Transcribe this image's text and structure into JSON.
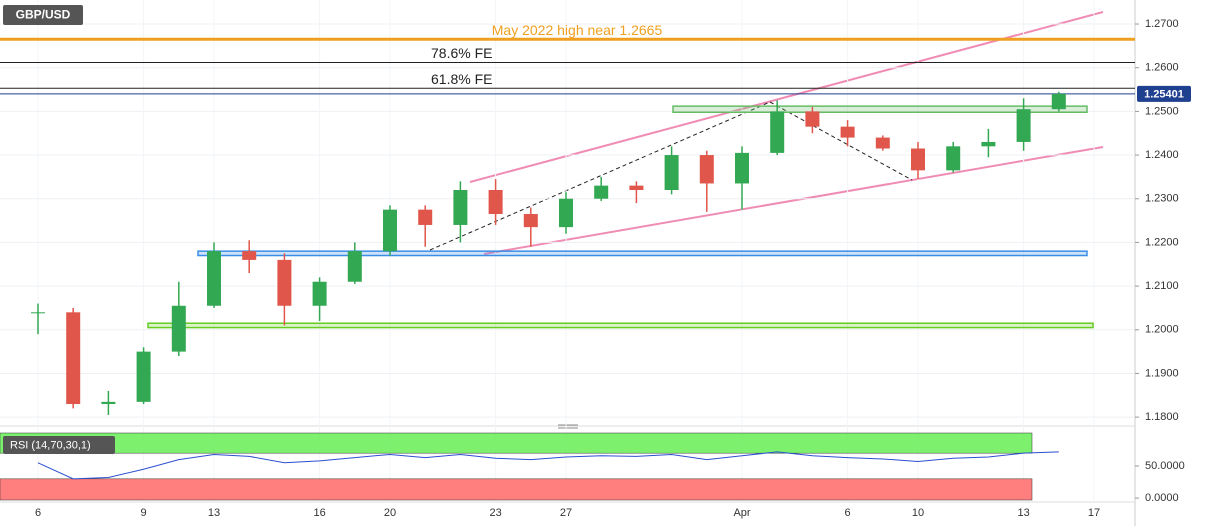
{
  "chart_data": {
    "type": "candlestick",
    "symbol": "GBP/USD",
    "categories": [
      "6",
      null,
      null,
      "9",
      null,
      "13",
      null,
      null,
      "16",
      null,
      "20",
      null,
      null,
      "23",
      null,
      "27",
      null,
      null,
      null,
      null,
      "Apr",
      null,
      null,
      "6",
      null,
      "10",
      null,
      null,
      "13",
      null,
      "17"
    ],
    "open": [
      1.204,
      1.204,
      1.183,
      1.1835,
      1.195,
      1.2055,
      1.218,
      1.216,
      1.2055,
      1.211,
      1.218,
      1.2275,
      1.224,
      1.232,
      1.2265,
      1.2235,
      1.23,
      1.233,
      1.232,
      1.24,
      1.2335,
      1.2405,
      1.25,
      1.2465,
      1.244,
      1.2415,
      1.2365,
      1.242,
      1.243,
      1.2505,
      null
    ],
    "high": [
      1.206,
      1.205,
      1.186,
      1.196,
      1.211,
      1.22,
      1.2205,
      1.2175,
      1.212,
      1.22,
      1.2285,
      1.2285,
      1.234,
      1.2345,
      1.228,
      1.2315,
      1.235,
      1.234,
      1.242,
      1.241,
      1.242,
      1.2525,
      1.251,
      1.248,
      1.2445,
      1.243,
      1.243,
      1.246,
      1.253,
      1.2545,
      null
    ],
    "low": [
      1.199,
      1.182,
      1.1805,
      1.183,
      1.194,
      1.205,
      1.213,
      1.201,
      1.202,
      1.2105,
      1.217,
      1.219,
      1.22,
      1.224,
      1.219,
      1.222,
      1.2295,
      1.229,
      1.231,
      1.227,
      1.2275,
      1.24,
      1.245,
      1.242,
      1.241,
      1.2345,
      1.236,
      1.2395,
      1.241,
      1.25,
      null
    ],
    "close": [
      1.204,
      1.183,
      1.1835,
      1.195,
      1.2055,
      1.218,
      1.216,
      1.2055,
      1.211,
      1.218,
      1.2275,
      1.224,
      1.232,
      1.2265,
      1.2235,
      1.23,
      1.233,
      1.232,
      1.24,
      1.2335,
      1.2405,
      1.25,
      1.2465,
      1.244,
      1.2415,
      1.2365,
      1.242,
      1.243,
      1.2505,
      1.254,
      null
    ],
    "up_color": "#33a852",
    "down_color": "#e0564b",
    "ylim": [
      1.1782,
      1.2755
    ],
    "yticks": [
      {
        "value": 1.18,
        "label": "1.1800"
      },
      {
        "value": 1.19,
        "label": "1.1900"
      },
      {
        "value": 1.2,
        "label": "1.2000"
      },
      {
        "value": 1.21,
        "label": "1.2100"
      },
      {
        "value": 1.22,
        "label": "1.2200"
      },
      {
        "value": 1.23,
        "label": "1.2300"
      },
      {
        "value": 1.24,
        "label": "1.2400"
      },
      {
        "value": 1.25,
        "label": "1.2500"
      },
      {
        "value": 1.26,
        "label": "1.2600"
      },
      {
        "value": 1.27,
        "label": "1.2700"
      }
    ],
    "grid": true,
    "last_price": 1.25401,
    "last_color": "#1f3f8f",
    "levels": [
      {
        "label": "May 2022 high near 1.2665",
        "value": 1.2665,
        "color": "#f0a020"
      },
      {
        "label": "78.6% FE",
        "value": 1.2612,
        "color": "#222222"
      },
      {
        "label": "61.8% FE",
        "value": 1.2553,
        "color": "#222222"
      }
    ],
    "zones": [
      {
        "low": 1.2005,
        "high": 1.2015,
        "color": "#66cc22"
      },
      {
        "low": 1.217,
        "high": 1.218,
        "color": "#3a8ee6"
      },
      {
        "low": 1.2498,
        "high": 1.2512,
        "color": "#66bb66"
      }
    ],
    "rsi": {
      "title": "RSI (14,70,30,1)",
      "values": [
        55,
        30,
        32,
        45,
        60,
        68,
        65,
        55,
        58,
        63,
        68,
        63,
        68,
        62,
        60,
        64,
        66,
        65,
        68,
        60,
        66,
        72,
        66,
        63,
        61,
        57,
        62,
        64,
        70,
        72,
        null
      ],
      "color": "#2a4fd0",
      "overbought": 70,
      "oversold": 30,
      "ylim": [
        -3,
        103
      ],
      "yticks": [
        {
          "value": 50,
          "label": "50.0000"
        },
        {
          "value": 0,
          "label": "0.0000"
        }
      ]
    }
  }
}
